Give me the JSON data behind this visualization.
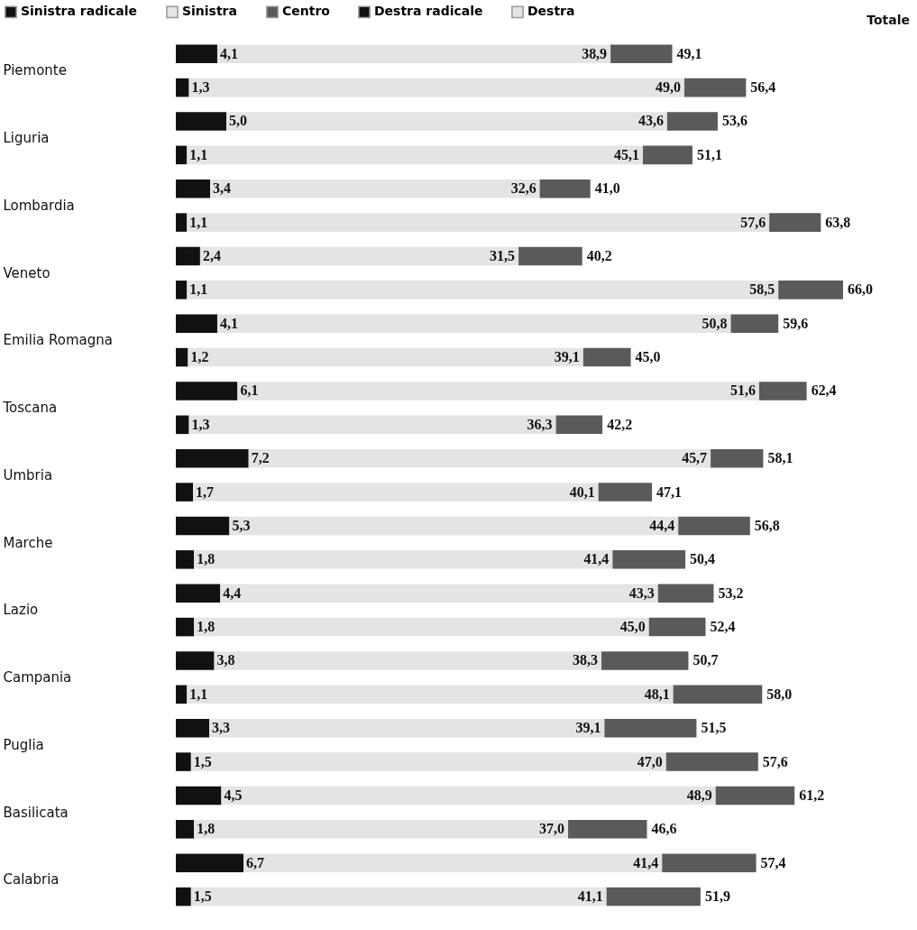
{
  "chart_data": {
    "type": "bar",
    "orientation": "horizontal",
    "stacked": true,
    "legend": "top",
    "categories": [
      "Piemonte",
      null,
      "Liguria",
      null,
      "Lombardia",
      null,
      "Veneto",
      null,
      "Emilia Romagna",
      null,
      "Toscana",
      null,
      "Umbria",
      null,
      "Marche",
      null,
      "Lazio",
      null,
      "Campania",
      null,
      "Puglia",
      null,
      "Basilicata",
      null,
      "Calabria",
      null
    ],
    "series": [
      {
        "name": "Sinistra radicale",
        "color": "#111111",
        "values": [
          4.1,
          1.3,
          5.0,
          1.1,
          3.4,
          1.1,
          2.4,
          1.1,
          4.1,
          1.2,
          6.1,
          1.3,
          7.2,
          1.7,
          5.3,
          1.8,
          4.4,
          1.8,
          3.8,
          1.1,
          3.3,
          1.5,
          4.5,
          1.8,
          6.7,
          1.5
        ],
        "value_labels": [
          "4,1",
          "1,3",
          "5,0",
          "1,1",
          "3,4",
          "1,1",
          "2,4",
          "1,1",
          "4,1",
          "1,2",
          "6,1",
          "1,3",
          "7,2",
          "1,7",
          "5,3",
          "1,8",
          "4,4",
          "1,8",
          "3,8",
          "1,1",
          "3,3",
          "1,5",
          "4,5",
          "1,8",
          "6,7",
          "1,5"
        ]
      },
      {
        "name": "Sinistra",
        "color": "#e4e4e4",
        "values": [
          38.9,
          49.0,
          43.6,
          45.1,
          32.6,
          57.6,
          31.5,
          58.5,
          50.8,
          39.1,
          51.6,
          36.3,
          45.7,
          40.1,
          44.4,
          41.4,
          43.3,
          45.0,
          38.3,
          48.1,
          39.1,
          47.0,
          48.9,
          37.0,
          41.4,
          41.1
        ],
        "value_labels": [
          "38,9",
          "49,0",
          "43,6",
          "45,1",
          "32,6",
          "57,6",
          "31,5",
          "58,5",
          "50,8",
          "39,1",
          "51,6",
          "36,3",
          "45,7",
          "40,1",
          "44,4",
          "41,4",
          "43,3",
          "45,0",
          "38,3",
          "48,1",
          "39,1",
          "47,0",
          "48,9",
          "37,0",
          "41,4",
          "41,1"
        ]
      },
      {
        "name": "Centro",
        "color": "#5a5a5a",
        "values": [
          6.1,
          6.1,
          5.0,
          4.9,
          5.0,
          5.1,
          6.3,
          6.4,
          4.7,
          4.7,
          4.7,
          4.6,
          5.2,
          5.3,
          7.1,
          7.2,
          5.5,
          5.6,
          8.6,
          8.8,
          9.1,
          9.1,
          7.8,
          7.8,
          9.3,
          9.3
        ]
      },
      {
        "name": "Destra radicale",
        "color": "#111111",
        "values": [
          null,
          null,
          null,
          null,
          null,
          null,
          null,
          null,
          null,
          null,
          null,
          null,
          null,
          null,
          null,
          null,
          null,
          null,
          null,
          null,
          null,
          null,
          null,
          null,
          null,
          null
        ]
      },
      {
        "name": "Destra",
        "color": "#e4e4e4",
        "values": [
          null,
          null,
          null,
          null,
          null,
          null,
          null,
          null,
          null,
          null,
          null,
          null,
          null,
          null,
          null,
          null,
          null,
          null,
          null,
          null,
          null,
          null,
          null,
          null,
          null,
          null
        ]
      }
    ],
    "totals": [
      "49,1",
      "56,4",
      "53,6",
      "51,1",
      "41,0",
      "63,8",
      "40,2",
      "66,0",
      "59,6",
      "45,0",
      "62,4",
      "42,2",
      "58,1",
      "47,1",
      "56,8",
      "50,4",
      "53,2",
      "52,4",
      "50,7",
      "58,0",
      "51,5",
      "57,6",
      "61,2",
      "46,6",
      "57,4",
      "51,9"
    ],
    "annotations": [
      "Totale"
    ]
  }
}
